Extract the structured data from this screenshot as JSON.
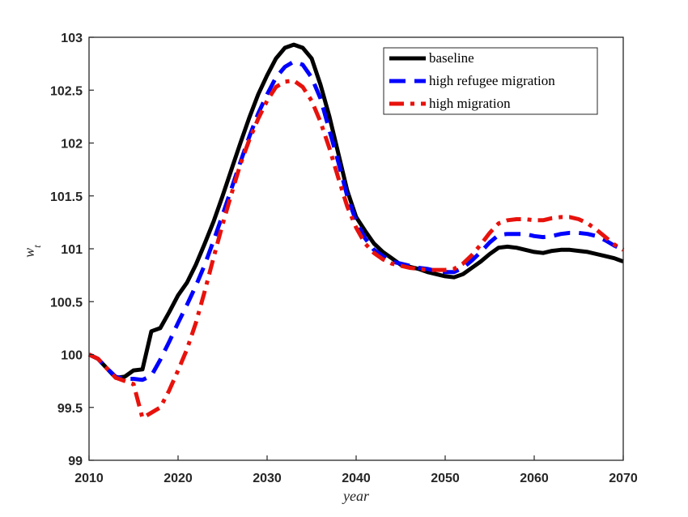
{
  "chart_data": {
    "type": "line",
    "title": "",
    "xlabel": "year",
    "ylabel": "w_t",
    "xlim": [
      2010,
      2070
    ],
    "ylim": [
      99,
      103
    ],
    "xticks": [
      2010,
      2020,
      2030,
      2040,
      2050,
      2060,
      2070
    ],
    "xtick_labels": [
      "2010",
      "2020",
      "2030",
      "2040",
      "2050",
      "2060",
      "2070"
    ],
    "yticks": [
      99,
      99.5,
      100,
      100.5,
      101,
      101.5,
      102,
      102.5,
      103
    ],
    "ytick_labels": [
      "99",
      "99.5",
      "100",
      "100.5",
      "101",
      "101.5",
      "102",
      "102.5",
      "103"
    ],
    "grid": false,
    "legend_position": "top-right",
    "series": [
      {
        "name": "baseline",
        "color": "#000000",
        "dash": "solid",
        "x": [
          2010,
          2011,
          2012,
          2013,
          2014,
          2015,
          2016,
          2017,
          2018,
          2019,
          2020,
          2021,
          2022,
          2023,
          2024,
          2025,
          2026,
          2027,
          2028,
          2029,
          2030,
          2031,
          2032,
          2033,
          2034,
          2035,
          2036,
          2037,
          2038,
          2039,
          2040,
          2041,
          2042,
          2043,
          2044,
          2045,
          2046,
          2047,
          2048,
          2049,
          2050,
          2051,
          2052,
          2053,
          2054,
          2055,
          2056,
          2057,
          2058,
          2059,
          2060,
          2061,
          2062,
          2063,
          2064,
          2065,
          2066,
          2067,
          2068,
          2069,
          2070
        ],
        "y": [
          100.0,
          99.96,
          99.87,
          99.78,
          99.79,
          99.85,
          99.86,
          100.22,
          100.25,
          100.4,
          100.56,
          100.68,
          100.85,
          101.05,
          101.26,
          101.5,
          101.75,
          102.0,
          102.24,
          102.46,
          102.64,
          102.8,
          102.9,
          102.93,
          102.9,
          102.8,
          102.55,
          102.25,
          101.9,
          101.55,
          101.3,
          101.17,
          101.05,
          100.97,
          100.91,
          100.85,
          100.83,
          100.81,
          100.78,
          100.76,
          100.74,
          100.73,
          100.76,
          100.82,
          100.88,
          100.95,
          101.01,
          101.02,
          101.01,
          100.99,
          100.97,
          100.96,
          100.98,
          100.99,
          100.99,
          100.98,
          100.97,
          100.95,
          100.93,
          100.91,
          100.88
        ]
      },
      {
        "name": "high refugee migration",
        "color": "#0000ff",
        "dash": "dashed",
        "x": [
          2010,
          2011,
          2012,
          2013,
          2014,
          2015,
          2016,
          2017,
          2018,
          2019,
          2020,
          2021,
          2022,
          2023,
          2024,
          2025,
          2026,
          2027,
          2028,
          2029,
          2030,
          2031,
          2032,
          2033,
          2034,
          2035,
          2036,
          2037,
          2038,
          2039,
          2040,
          2041,
          2042,
          2043,
          2044,
          2045,
          2046,
          2047,
          2048,
          2049,
          2050,
          2051,
          2052,
          2053,
          2054,
          2055,
          2056,
          2057,
          2058,
          2059,
          2060,
          2061,
          2062,
          2063,
          2064,
          2065,
          2066,
          2067,
          2068,
          2069,
          2070
        ],
        "y": [
          100.0,
          99.96,
          99.87,
          99.79,
          99.77,
          99.77,
          99.76,
          99.8,
          99.95,
          100.12,
          100.3,
          100.47,
          100.65,
          100.85,
          101.08,
          101.32,
          101.57,
          101.82,
          102.06,
          102.28,
          102.46,
          102.62,
          102.72,
          102.77,
          102.74,
          102.62,
          102.42,
          102.12,
          101.82,
          101.5,
          101.26,
          101.1,
          100.99,
          100.93,
          100.88,
          100.86,
          100.84,
          100.82,
          100.81,
          100.79,
          100.78,
          100.78,
          100.82,
          100.89,
          100.97,
          101.06,
          101.13,
          101.14,
          101.14,
          101.14,
          101.12,
          101.11,
          101.12,
          101.14,
          101.15,
          101.15,
          101.14,
          101.12,
          101.08,
          101.03,
          100.99
        ]
      },
      {
        "name": "high migration",
        "color": "#e8120c",
        "dash": "dashdot",
        "x": [
          2010,
          2011,
          2012,
          2013,
          2014,
          2015,
          2016,
          2017,
          2018,
          2019,
          2020,
          2021,
          2022,
          2023,
          2024,
          2025,
          2026,
          2027,
          2028,
          2029,
          2030,
          2031,
          2032,
          2033,
          2034,
          2035,
          2036,
          2037,
          2038,
          2039,
          2040,
          2041,
          2042,
          2043,
          2044,
          2045,
          2046,
          2047,
          2048,
          2049,
          2050,
          2051,
          2052,
          2053,
          2054,
          2055,
          2056,
          2057,
          2058,
          2059,
          2060,
          2061,
          2062,
          2063,
          2064,
          2065,
          2066,
          2067,
          2068,
          2069,
          2070
        ],
        "y": [
          100.0,
          99.96,
          99.87,
          99.78,
          99.75,
          99.72,
          99.4,
          99.45,
          99.5,
          99.66,
          99.85,
          100.05,
          100.3,
          100.6,
          100.92,
          101.23,
          101.52,
          101.8,
          102.03,
          102.23,
          102.4,
          102.53,
          102.58,
          102.59,
          102.53,
          102.4,
          102.2,
          101.95,
          101.67,
          101.4,
          101.2,
          101.05,
          100.96,
          100.9,
          100.86,
          100.84,
          100.82,
          100.81,
          100.8,
          100.8,
          100.8,
          100.81,
          100.86,
          100.94,
          101.04,
          101.15,
          101.24,
          101.27,
          101.28,
          101.28,
          101.27,
          101.27,
          101.29,
          101.3,
          101.3,
          101.28,
          101.24,
          101.18,
          101.11,
          101.04,
          100.99
        ]
      }
    ]
  }
}
